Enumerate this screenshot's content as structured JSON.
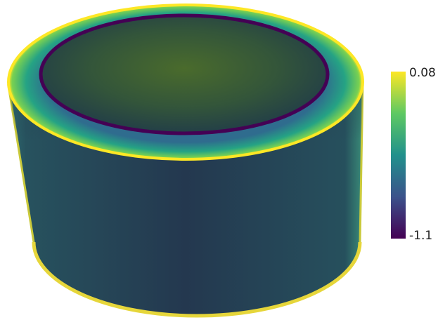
{
  "colorbar": {
    "ticks": [
      -1.1,
      0.08
    ],
    "colormap": [
      "#440154",
      "#3b528b",
      "#21918c",
      "#5ec962",
      "#fde725"
    ]
  }
}
